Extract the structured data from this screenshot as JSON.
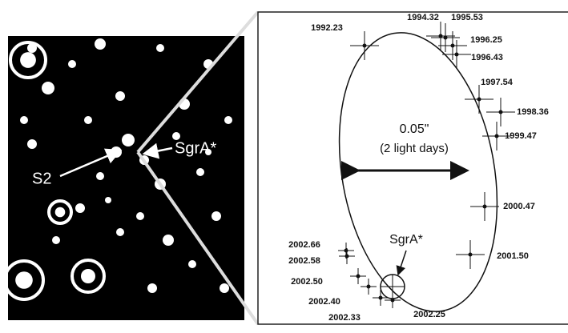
{
  "left_panel": {
    "labels": [
      "S2",
      "SgrA*"
    ]
  },
  "right_panel": {
    "scale": {
      "size": "0.05\"",
      "note": "(2 light days)"
    },
    "target": "SgrA*",
    "epochs": [
      "1992.23",
      "1994.32",
      "1995.53",
      "1996.25",
      "1996.43",
      "1997.54",
      "1998.36",
      "1999.47",
      "2000.47",
      "2001.50",
      "2002.66",
      "2002.58",
      "2002.50",
      "2002.40",
      "2002.33",
      "2002.25"
    ]
  }
}
